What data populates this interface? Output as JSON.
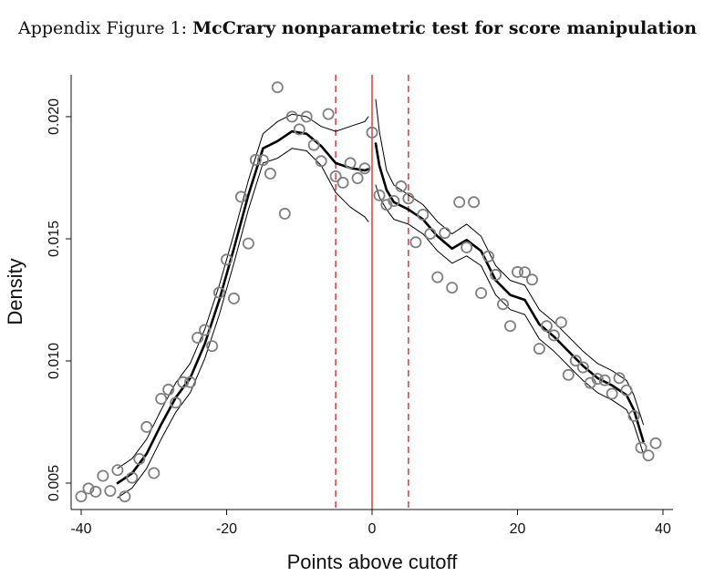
{
  "caption": {
    "prefix": "Appendix Figure 1:",
    "title": "McCrary nonparametric test for score manipulation"
  },
  "colors": {
    "points": "#808080",
    "fit": "#000000",
    "ci": "#000000",
    "cutoff": "#e8282b",
    "bandwidth": "#e8282b"
  },
  "chart_data": {
    "type": "scatter",
    "xlabel": "Points above cutoff",
    "ylabel": "Density",
    "xlim": [
      -42,
      41
    ],
    "ylim": [
      0.0042,
      0.0217
    ],
    "xticks": [
      -40,
      -20,
      0,
      20,
      40
    ],
    "xtick_labels": [
      "-40",
      "-20",
      "0",
      "20",
      "40"
    ],
    "yticks": [
      0.005,
      0.01,
      0.015,
      0.02
    ],
    "ytick_labels": [
      "0.005",
      "0.010",
      "0.015",
      "0.020"
    ],
    "cutoff": 0,
    "bandwidth_lines": [
      -5,
      5
    ],
    "bins": {
      "x": [
        -40,
        -39,
        -38,
        -37,
        -36,
        -35,
        -34,
        -33,
        -32,
        -31,
        -30,
        -29,
        -28,
        -27,
        -26,
        -25,
        -24,
        -23,
        -22,
        -21,
        -20,
        -19,
        -18,
        -17,
        -16,
        -15,
        -14,
        -13,
        -12,
        -11,
        -10,
        -9,
        -8,
        -7,
        -6,
        -5,
        -4,
        -3,
        -2,
        -1,
        0,
        1,
        2,
        3,
        4,
        5,
        6,
        7,
        8,
        9,
        10,
        11,
        12,
        13,
        14,
        15,
        16,
        17,
        18,
        19,
        20,
        21,
        22,
        23,
        24,
        25,
        26,
        27,
        28,
        29,
        30,
        31,
        32,
        33,
        34,
        35,
        36,
        37,
        38,
        39
      ],
      "y": [
        0.00445,
        0.00478,
        0.00465,
        0.0053,
        0.00468,
        0.00553,
        0.00445,
        0.00522,
        0.00599,
        0.0073,
        0.00541,
        0.00845,
        0.00883,
        0.00829,
        0.00913,
        0.00913,
        0.01095,
        0.01127,
        0.01061,
        0.0128,
        0.01415,
        0.01256,
        0.01672,
        0.01481,
        0.01823,
        0.01822,
        0.01767,
        0.0212,
        0.01603,
        0.02,
        0.01948,
        0.02,
        0.01884,
        0.01818,
        0.02011,
        0.01756,
        0.0173,
        0.0181,
        0.01748,
        0.01788,
        0.01935,
        0.01678,
        0.01639,
        0.01655,
        0.01715,
        0.01665,
        0.01486,
        0.01599,
        0.01521,
        0.01343,
        0.01524,
        0.013,
        0.0165,
        0.01465,
        0.0165,
        0.01278,
        0.01428,
        0.01353,
        0.01232,
        0.01143,
        0.01364,
        0.01363,
        0.01333,
        0.0105,
        0.01143,
        0.01105,
        0.01158,
        0.00943,
        0.01001,
        0.00974,
        0.0091,
        0.00927,
        0.00921,
        0.00866,
        0.0093,
        0.0088,
        0.00775,
        0.00645,
        0.00613,
        0.00663
      ]
    },
    "fit_left": {
      "x": [
        -35,
        -33,
        -31,
        -29,
        -27,
        -25,
        -23,
        -21,
        -19,
        -17,
        -15,
        -13,
        -11,
        -9,
        -7,
        -5,
        -3,
        -1,
        -0.5
      ],
      "y": [
        0.005,
        0.0054,
        0.0062,
        0.0074,
        0.0085,
        0.0093,
        0.0107,
        0.0125,
        0.0146,
        0.0168,
        0.0187,
        0.019,
        0.0194,
        0.0193,
        0.0188,
        0.0181,
        0.0179,
        0.0178,
        0.01785
      ]
    },
    "ci_left": {
      "upper": [
        0.0056,
        0.006,
        0.0068,
        0.008,
        0.0091,
        0.0099,
        0.0113,
        0.0131,
        0.0152,
        0.0174,
        0.0193,
        0.0198,
        0.0201,
        0.02,
        0.0196,
        0.0194,
        0.0196,
        0.0198,
        0.02
      ],
      "lower": [
        0.0044,
        0.0048,
        0.0056,
        0.0068,
        0.0079,
        0.0087,
        0.0101,
        0.0119,
        0.014,
        0.0162,
        0.0181,
        0.0183,
        0.0187,
        0.0186,
        0.018,
        0.0169,
        0.0163,
        0.0159,
        0.0157
      ]
    },
    "fit_right": {
      "x": [
        0.5,
        1,
        2,
        3,
        5,
        7,
        9,
        11,
        13,
        15,
        17,
        19,
        21,
        23,
        25,
        27,
        29,
        31,
        33,
        35,
        36,
        37.3
      ],
      "y": [
        0.0189,
        0.018,
        0.017,
        0.0165,
        0.0162,
        0.0158,
        0.0151,
        0.0146,
        0.01495,
        0.0145,
        0.0133,
        0.0127,
        0.0125,
        0.0115,
        0.011,
        0.0104,
        0.0098,
        0.0093,
        0.009,
        0.0086,
        0.008,
        0.0067
      ]
    },
    "ci_right": {
      "upper": [
        0.0207,
        0.0194,
        0.0178,
        0.0172,
        0.0168,
        0.0164,
        0.0157,
        0.0152,
        0.0156,
        0.0151,
        0.0139,
        0.0133,
        0.0131,
        0.0121,
        0.0116,
        0.011,
        0.0104,
        0.0099,
        0.0096,
        0.0092,
        0.0086,
        0.0074
      ],
      "lower": [
        0.0172,
        0.0167,
        0.0162,
        0.0158,
        0.0156,
        0.0152,
        0.0145,
        0.014,
        0.0143,
        0.0139,
        0.0127,
        0.0121,
        0.0119,
        0.0109,
        0.0104,
        0.0098,
        0.0092,
        0.0087,
        0.0084,
        0.008,
        0.0074,
        0.0062
      ]
    }
  }
}
